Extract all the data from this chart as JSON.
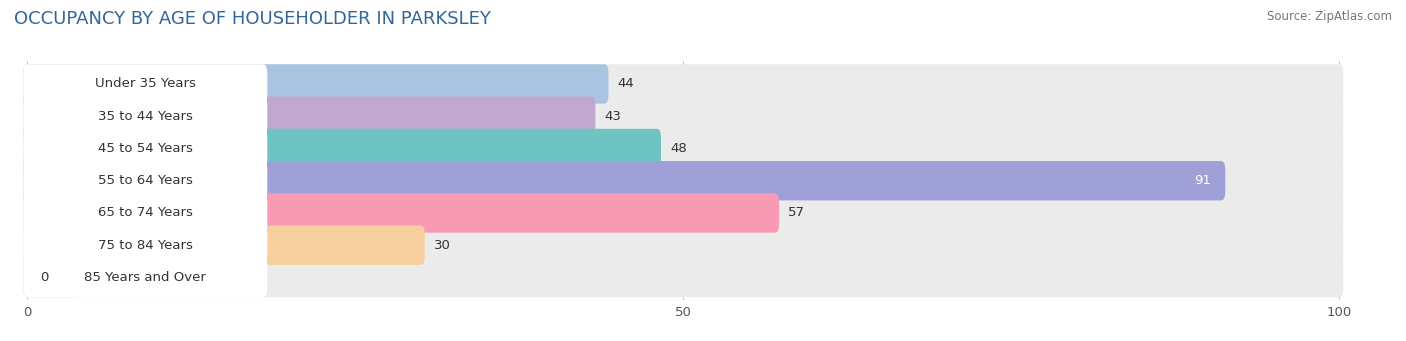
{
  "title": "OCCUPANCY BY AGE OF HOUSEHOLDER IN PARKSLEY",
  "source": "Source: ZipAtlas.com",
  "categories": [
    "Under 35 Years",
    "35 to 44 Years",
    "45 to 54 Years",
    "55 to 64 Years",
    "65 to 74 Years",
    "75 to 84 Years",
    "85 Years and Over"
  ],
  "values": [
    44,
    43,
    48,
    91,
    57,
    30,
    0
  ],
  "bar_colors": [
    "#a8c4e0",
    "#c0a8d0",
    "#6ec4c0",
    "#a0a0d8",
    "#f89ab4",
    "#f8d0a0",
    "#f4b8b8"
  ],
  "label_bg_colors": [
    "#a8c4e0",
    "#c0a8d0",
    "#6ec4c0",
    "#a0a0d8",
    "#f89ab4",
    "#f8d0a0",
    "#f4b8b8"
  ],
  "xlim_max": 100,
  "background_color": "#ffffff",
  "bar_bg_color": "#ebebeb",
  "title_fontsize": 13,
  "label_fontsize": 9.5,
  "value_fontsize": 9.5,
  "tick_fontsize": 9.5,
  "bar_height": 0.62,
  "figsize": [
    14.06,
    3.41
  ],
  "dpi": 100
}
